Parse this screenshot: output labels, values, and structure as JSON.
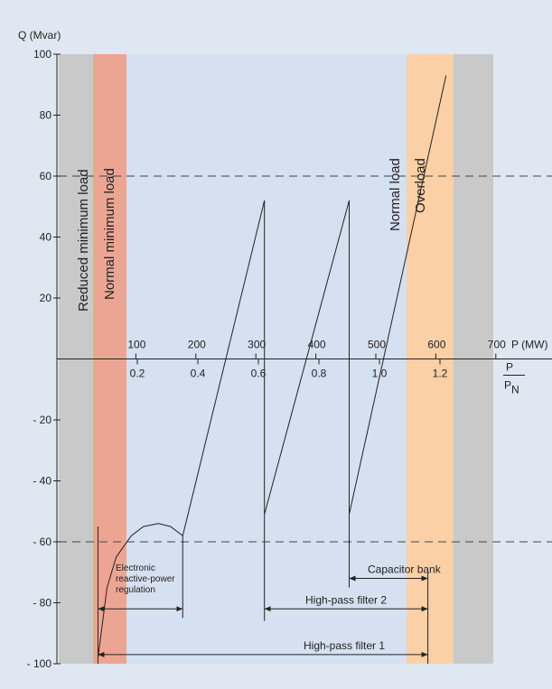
{
  "chart_data": {
    "type": "line",
    "y_axis": {
      "label": "Q (Mvar)",
      "ticks": [
        100,
        80,
        60,
        40,
        20,
        -20,
        -40,
        -60,
        -80,
        -100
      ],
      "tick_labels": [
        "100",
        "80",
        "60",
        "40",
        "20",
        "- 20",
        "- 40",
        "- 60",
        "- 80",
        "- 100"
      ],
      "range": [
        -100,
        100
      ]
    },
    "x_axis_mw": {
      "label": "P (MW)",
      "ticks": [
        100,
        200,
        300,
        400,
        500,
        600,
        700
      ],
      "tick_labels": [
        "100",
        "200",
        "300",
        "400",
        "500",
        "600",
        "700"
      ]
    },
    "x_axis_pu": {
      "label_numerator": "P",
      "label_denominator": "P",
      "label_denominator_sub": "N",
      "ticks": [
        0.2,
        0.4,
        0.6,
        0.8,
        1.0,
        1.2
      ],
      "tick_labels": [
        "0.2",
        "0.4",
        "0.6",
        "0.8",
        "1.0",
        "1.2"
      ]
    },
    "reference_lines": [
      60,
      -60
    ],
    "zones": [
      {
        "label": "Reduced minimum load",
        "from_pu": -0.0,
        "to_pu": 0.07,
        "color": "#c9c9c9"
      },
      {
        "label": "Normal minimum load",
        "from_pu": 0.07,
        "to_pu": 0.18,
        "color": "#eda593"
      },
      {
        "label": "Normal load",
        "from_pu": 0.18,
        "to_pu": 1.0,
        "color": "#d5e0f0"
      },
      {
        "label": "Overload",
        "from_pu": 1.0,
        "to_pu": 1.16,
        "color": "#fbd0a6"
      },
      {
        "label": "",
        "from_pu": 1.16,
        "to_pu": 1.3,
        "color": "#c9c9c9"
      }
    ],
    "series": [
      {
        "points": [
          [
            0.07,
            -98
          ],
          [
            0.1,
            -75
          ],
          [
            0.13,
            -65
          ],
          [
            0.18,
            -58
          ],
          [
            0.22,
            -55
          ],
          [
            0.27,
            -54
          ],
          [
            0.31,
            -55
          ],
          [
            0.35,
            -58
          ],
          [
            0.62,
            52
          ],
          [
            0.62,
            -51
          ],
          [
            0.9,
            52
          ],
          [
            0.9,
            -51
          ],
          [
            1.22,
            93
          ]
        ]
      }
    ],
    "ranges": [
      {
        "label": "Electronic reactive-power regulation",
        "from_pu": 0.07,
        "to_pu": 0.35,
        "q": -82
      },
      {
        "label": "Capacitor bank",
        "from_pu": 0.9,
        "to_pu": 1.16,
        "q": -72
      },
      {
        "label": "High-pass filter 2",
        "from_pu": 0.62,
        "to_pu": 1.16,
        "q": -82
      },
      {
        "label": "High-pass filter 1",
        "from_pu": 0.07,
        "to_pu": 1.16,
        "q": -97
      }
    ]
  },
  "labels": {
    "small_regulation_line1": "Electronic",
    "small_regulation_line2": "reactive-power",
    "small_regulation_line3": "regulation"
  },
  "colors": {
    "background": "#dfe8f1",
    "grey_zone": "#c9c9c9",
    "min_zone": "#eda593",
    "normal_zone": "#d5e0f0",
    "overload_zone": "#fbd0a6"
  }
}
